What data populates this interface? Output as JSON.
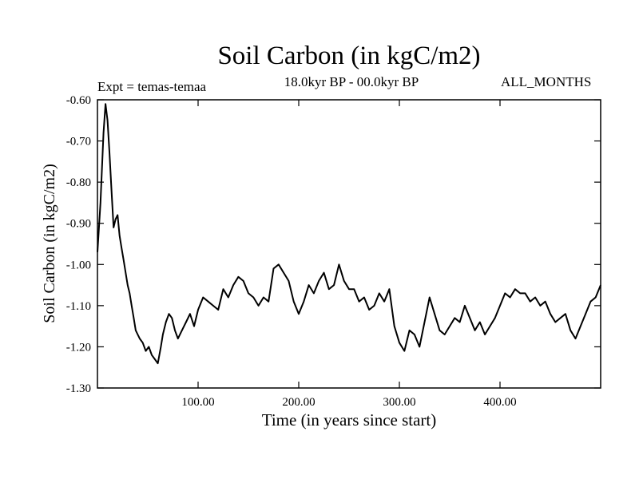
{
  "chart_data": {
    "type": "line",
    "title": "Soil Carbon (in kgC/m2)",
    "subtitle": "18.0kyr BP - 00.0kyr BP",
    "left_label": "Expt = temas-temaa",
    "right_label": "ALL_MONTHS",
    "xlabel": "Time (in years since start)",
    "ylabel": "Soil Carbon (in kgC/m2)",
    "xlim": [
      0,
      500
    ],
    "ylim": [
      -1.3,
      -0.6
    ],
    "xticks": [
      100,
      200,
      300,
      400
    ],
    "xtick_labels": [
      "100.00",
      "200.00",
      "300.00",
      "400.00"
    ],
    "yticks": [
      -0.6,
      -0.7,
      -0.8,
      -0.9,
      -1.0,
      -1.1,
      -1.2,
      -1.3
    ],
    "ytick_labels": [
      "-0.60",
      "-0.70",
      "-0.80",
      "-0.90",
      "-1.00",
      "-1.10",
      "-1.20",
      "-1.30"
    ],
    "series": [
      {
        "name": "Soil Carbon",
        "x": [
          0,
          3,
          6,
          8,
          10,
          12,
          14,
          16,
          18,
          20,
          22,
          24,
          26,
          28,
          30,
          32,
          34,
          36,
          38,
          40,
          42,
          45,
          48,
          51,
          54,
          57,
          60,
          63,
          65,
          68,
          71,
          74,
          77,
          80,
          84,
          88,
          92,
          96,
          100,
          105,
          110,
          115,
          120,
          125,
          130,
          135,
          140,
          145,
          150,
          155,
          160,
          165,
          170,
          175,
          180,
          185,
          190,
          195,
          200,
          205,
          210,
          215,
          220,
          225,
          230,
          235,
          240,
          245,
          250,
          255,
          260,
          265,
          270,
          275,
          280,
          285,
          290,
          295,
          300,
          305,
          310,
          315,
          320,
          325,
          330,
          335,
          340,
          345,
          350,
          355,
          360,
          365,
          370,
          375,
          380,
          385,
          390,
          395,
          400,
          405,
          410,
          415,
          420,
          425,
          430,
          435,
          440,
          445,
          450,
          455,
          460,
          465,
          470,
          475,
          480,
          485,
          490,
          495,
          500
        ],
        "values": [
          -0.97,
          -0.85,
          -0.68,
          -0.61,
          -0.65,
          -0.73,
          -0.82,
          -0.91,
          -0.89,
          -0.88,
          -0.93,
          -0.96,
          -0.99,
          -1.02,
          -1.05,
          -1.07,
          -1.1,
          -1.13,
          -1.16,
          -1.17,
          -1.18,
          -1.19,
          -1.21,
          -1.2,
          -1.22,
          -1.23,
          -1.24,
          -1.2,
          -1.17,
          -1.14,
          -1.12,
          -1.13,
          -1.16,
          -1.18,
          -1.16,
          -1.14,
          -1.12,
          -1.15,
          -1.11,
          -1.08,
          -1.09,
          -1.1,
          -1.11,
          -1.06,
          -1.08,
          -1.05,
          -1.03,
          -1.04,
          -1.07,
          -1.08,
          -1.1,
          -1.08,
          -1.09,
          -1.01,
          -1.0,
          -1.02,
          -1.04,
          -1.09,
          -1.12,
          -1.09,
          -1.05,
          -1.07,
          -1.04,
          -1.02,
          -1.06,
          -1.05,
          -1.0,
          -1.04,
          -1.06,
          -1.06,
          -1.09,
          -1.08,
          -1.11,
          -1.1,
          -1.07,
          -1.09,
          -1.06,
          -1.15,
          -1.19,
          -1.21,
          -1.16,
          -1.17,
          -1.2,
          -1.14,
          -1.08,
          -1.12,
          -1.16,
          -1.17,
          -1.15,
          -1.13,
          -1.14,
          -1.1,
          -1.13,
          -1.16,
          -1.14,
          -1.17,
          -1.15,
          -1.13,
          -1.1,
          -1.07,
          -1.08,
          -1.06,
          -1.07,
          -1.07,
          -1.09,
          -1.08,
          -1.1,
          -1.09,
          -1.12,
          -1.14,
          -1.13,
          -1.12,
          -1.16,
          -1.18,
          -1.15,
          -1.12,
          -1.09,
          -1.08,
          -1.05
        ]
      }
    ]
  }
}
